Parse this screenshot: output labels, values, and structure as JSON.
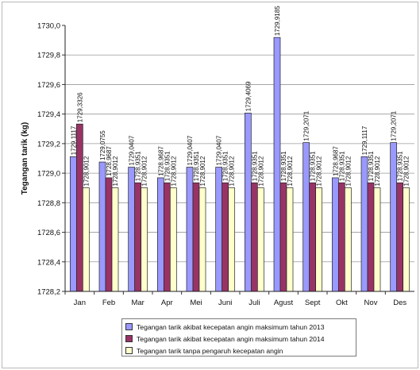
{
  "chart_data": {
    "type": "bar",
    "title": "",
    "xlabel": "",
    "ylabel": "Tegangan tarik (kg)",
    "ylim": [
      1728.2,
      1730.0
    ],
    "yticks": [
      "1730,0",
      "1729,8",
      "1729,6",
      "1729,4",
      "1729,2",
      "1729,0",
      "1728,8",
      "1728,6",
      "1728,4",
      "1728,2"
    ],
    "categories": [
      "Jan",
      "Feb",
      "Mar",
      "Apr",
      "Mei",
      "Juni",
      "Juli",
      "Agust",
      "Sept",
      "Okt",
      "Nov",
      "Des"
    ],
    "grid": true,
    "legend_position": "bottom",
    "series": [
      {
        "name": "Tegangan tarik akibat kecepatan angin maksimum tahun 2013",
        "color": "#9999ff",
        "values": [
          1729.1117,
          1729.0755,
          1729.0407,
          1728.9687,
          1729.0407,
          1729.0407,
          1729.4069,
          1729.9185,
          1729.2071,
          1728.9687,
          1729.1117,
          1729.2071
        ],
        "labels": [
          "1729,1117",
          "1729,0755",
          "1729,0407",
          "1728,9687",
          "1729,0407",
          "1729,0407",
          "1729,4069",
          "1729,9185",
          "1729,2071",
          "1728,9687",
          "1729,1117",
          "1729,2071"
        ]
      },
      {
        "name": "Tegangan tarik akibat kecepatan angin maksimum tahun 2014",
        "color": "#993366",
        "values": [
          1729.3326,
          1728.9687,
          1728.9351,
          1728.9351,
          1728.9351,
          1728.9351,
          1728.9351,
          1728.9351,
          1728.9351,
          1728.9351,
          1728.9351,
          1728.9351
        ],
        "labels": [
          "1729,3326",
          "1728,9687",
          "1728,9351",
          "1728,9351",
          "1728,9351",
          "1728,9351",
          "1728,9351",
          "1728,9351",
          "1728,9351",
          "1728,9351",
          "1728,9351",
          "1728,9351"
        ]
      },
      {
        "name": "Tegangan tarik tanpa pengaruh kecepatan angin",
        "color": "#ffffcc",
        "values": [
          1728.9012,
          1728.9012,
          1728.9012,
          1728.9012,
          1728.9012,
          1728.9012,
          1728.9012,
          1728.9012,
          1728.9012,
          1728.9012,
          1728.9012,
          1728.9012
        ],
        "labels": [
          "1728,9012",
          "1728,9012",
          "1728,9012",
          "1728,9012",
          "1728,9012",
          "1728,9012",
          "1728,9012",
          "1728,9012",
          "1728,9012",
          "1728,9012",
          "1728,9012",
          "1728,9012"
        ]
      }
    ]
  }
}
